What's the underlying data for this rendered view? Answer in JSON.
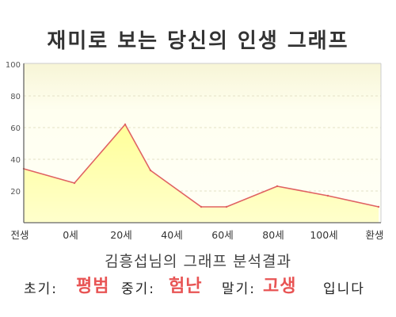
{
  "chart_data": {
    "type": "area",
    "title": "재미로 보는 당신의 인생 그래프",
    "xlabel": "",
    "ylabel": "",
    "ylim": [
      0,
      100
    ],
    "y_ticks": [
      20,
      40,
      60,
      80,
      100
    ],
    "x_ticks": [
      "전생",
      "0세",
      "20세",
      "40세",
      "60세",
      "80세",
      "100세",
      "환생"
    ],
    "grid": true,
    "legend": "none",
    "series": [
      {
        "points": [
          {
            "x": "전생",
            "y": 34
          },
          {
            "x": 0,
            "y": 25
          },
          {
            "x": 20,
            "y": 62
          },
          {
            "x": 30,
            "y": 33
          },
          {
            "x": 50,
            "y": 10
          },
          {
            "x": 60,
            "y": 10
          },
          {
            "x": 80,
            "y": 23
          },
          {
            "x": 100,
            "y": 17
          },
          {
            "x": "환생",
            "y": 10
          }
        ]
      }
    ]
  },
  "result": {
    "heading": "김흥섭님의 그래프 분석결과",
    "early_label": "초기:",
    "early_value": "평범",
    "mid_label": "중기:",
    "mid_value": "험난",
    "late_label": "말기:",
    "late_value": "고생",
    "suffix": "입니다"
  },
  "colors": {
    "line": "#e06262",
    "fill_top": "#ffff99",
    "fill_bottom": "#ffffcc",
    "highlight": "#e85454",
    "axis": "#666666",
    "frame": "#cccccc",
    "grid": "#e3e1c6"
  }
}
